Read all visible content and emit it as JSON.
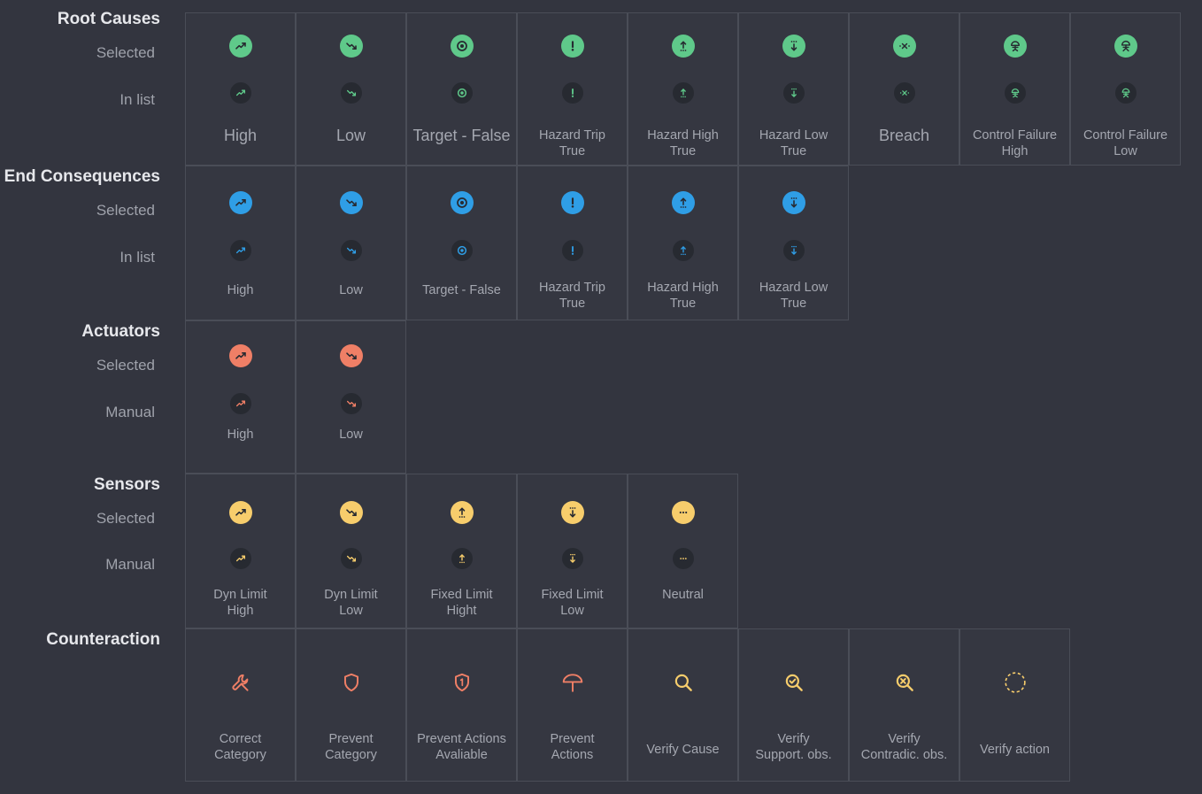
{
  "colors": {
    "green": "#5fc98a",
    "blue": "#2f9ee6",
    "coral": "#ef7f66",
    "yellow": "#f7cd6c",
    "dark": "#272a31"
  },
  "sections": {
    "root": {
      "title": "Root Causes",
      "row1": "Selected",
      "row2": "In list"
    },
    "end": {
      "title": "End Consequences",
      "row1": "Selected",
      "row2": "In list"
    },
    "act": {
      "title": "Actuators",
      "row1": "Selected",
      "row2": "Manual"
    },
    "sen": {
      "title": "Sensors",
      "row1": "Selected",
      "row2": "Manual"
    },
    "cnt": {
      "title": "Counteraction"
    }
  },
  "root_cells": [
    {
      "label": "High",
      "icon": "trend-up-icon"
    },
    {
      "label": "Low",
      "icon": "trend-down-icon"
    },
    {
      "label": "Target - False",
      "icon": "target-icon"
    },
    {
      "label": "Hazard Trip\nTrue",
      "icon": "exclamation-icon"
    },
    {
      "label": "Hazard High\nTrue",
      "icon": "hazard-high-icon"
    },
    {
      "label": "Hazard Low\nTrue",
      "icon": "hazard-low-icon"
    },
    {
      "label": "Breach",
      "icon": "breach-icon"
    },
    {
      "label": "Control Failure\nHigh",
      "icon": "control-failure-high-icon"
    },
    {
      "label": "Control Failure\nLow",
      "icon": "control-failure-low-icon"
    }
  ],
  "end_cells": [
    {
      "label": "High",
      "icon": "trend-up-icon"
    },
    {
      "label": "Low",
      "icon": "trend-down-icon"
    },
    {
      "label": "Target - False",
      "icon": "target-icon"
    },
    {
      "label": "Hazard Trip\nTrue",
      "icon": "exclamation-icon"
    },
    {
      "label": "Hazard High\nTrue",
      "icon": "hazard-high-icon"
    },
    {
      "label": "Hazard Low\nTrue",
      "icon": "hazard-low-icon"
    }
  ],
  "act_cells": [
    {
      "label": "High",
      "icon": "trend-up-icon"
    },
    {
      "label": "Low",
      "icon": "trend-down-icon"
    }
  ],
  "sen_cells": [
    {
      "label": "Dyn Limit\nHigh",
      "icon": "trend-up-icon"
    },
    {
      "label": "Dyn Limit\nLow",
      "icon": "trend-down-icon"
    },
    {
      "label": "Fixed Limit\nHight",
      "icon": "hazard-high-icon"
    },
    {
      "label": "Fixed Limit\nLow",
      "icon": "hazard-low-icon"
    },
    {
      "label": "Neutral",
      "icon": "ellipsis-icon"
    }
  ],
  "cnt_cells": [
    {
      "label": "Correct\nCategory",
      "icon": "wrench-icon"
    },
    {
      "label": "Prevent\nCategory",
      "icon": "shield-icon"
    },
    {
      "label": "Prevent Actions\nAvaliable",
      "icon": "shield-one-icon"
    },
    {
      "label": "Prevent\nActions",
      "icon": "umbrella-icon"
    },
    {
      "label": "Verify Cause",
      "icon": "magnifier-icon"
    },
    {
      "label": "Verify\nSupport. obs.",
      "icon": "magnifier-check-icon"
    },
    {
      "label": "Verify\nContradic. obs.",
      "icon": "magnifier-x-icon"
    },
    {
      "label": "Verify action",
      "icon": "dashed-circle-icon"
    }
  ]
}
